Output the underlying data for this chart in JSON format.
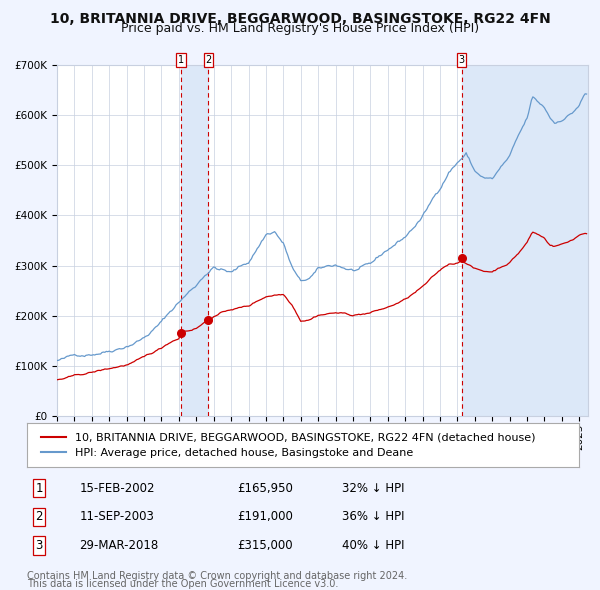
{
  "title": "10, BRITANNIA DRIVE, BEGGARWOOD, BASINGSTOKE, RG22 4FN",
  "subtitle": "Price paid vs. HM Land Registry's House Price Index (HPI)",
  "legend_label_red": "10, BRITANNIA DRIVE, BEGGARWOOD, BASINGSTOKE, RG22 4FN (detached house)",
  "legend_label_blue": "HPI: Average price, detached house, Basingstoke and Deane",
  "footer1": "Contains HM Land Registry data © Crown copyright and database right 2024.",
  "footer2": "This data is licensed under the Open Government Licence v3.0.",
  "sales": [
    {
      "num": 1,
      "date": "15-FEB-2002",
      "date_x": 2002.12,
      "price": 165950,
      "pct": "32%",
      "dir": "↓"
    },
    {
      "num": 2,
      "date": "11-SEP-2003",
      "date_x": 2003.7,
      "price": 191000,
      "pct": "36%",
      "dir": "↓"
    },
    {
      "num": 3,
      "date": "29-MAR-2018",
      "date_x": 2018.24,
      "price": 315000,
      "pct": "40%",
      "dir": "↓"
    }
  ],
  "ylim": [
    0,
    700000
  ],
  "xlim_start": 1995.0,
  "xlim_end": 2025.5,
  "bg_color": "#f0f4ff",
  "plot_bg_color": "#ffffff",
  "grid_color": "#c8d0e0",
  "red_line_color": "#cc0000",
  "blue_line_color": "#6699cc",
  "shade_color": "#dce8f8",
  "sale_marker_color": "#cc0000",
  "dashed_line_color": "#cc0000",
  "title_fontsize": 10,
  "subtitle_fontsize": 9,
  "tick_fontsize": 7.5,
  "legend_fontsize": 8,
  "table_fontsize": 8.5,
  "footer_fontsize": 7
}
